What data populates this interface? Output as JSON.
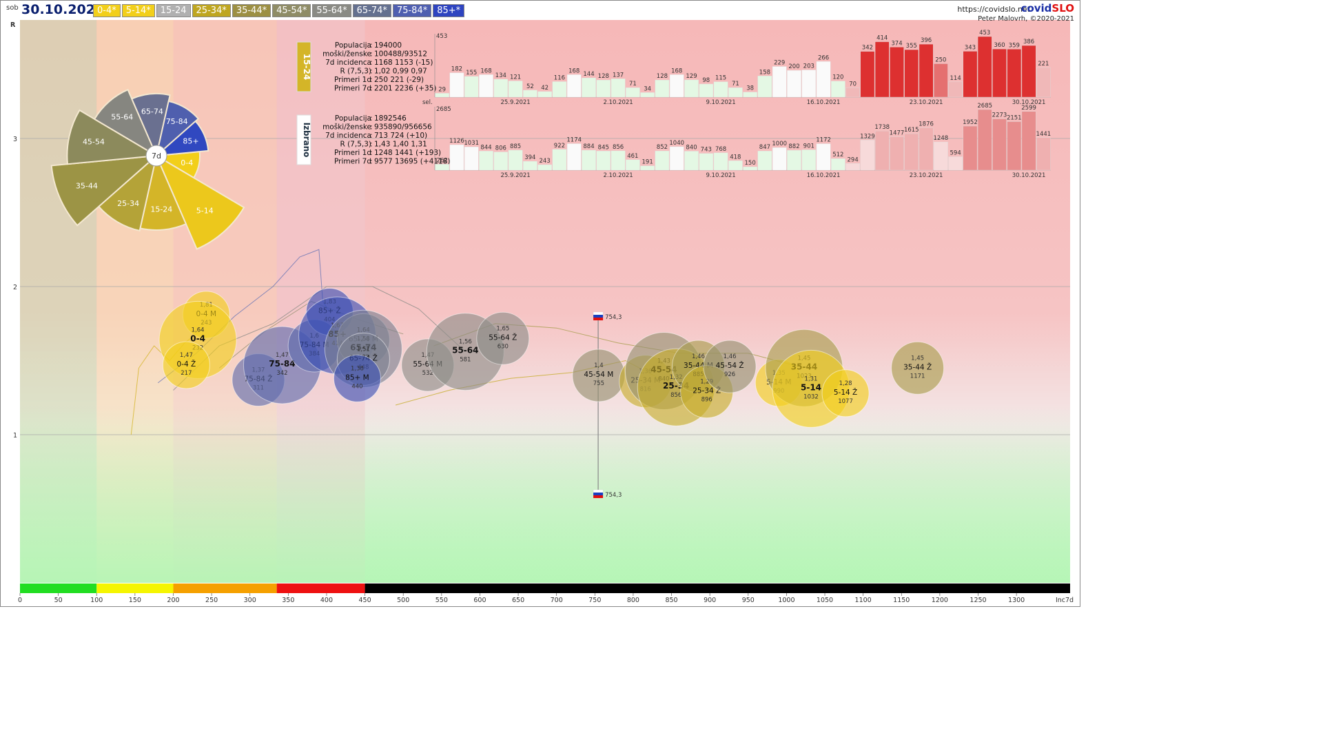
{
  "header": {
    "dayname": "sob",
    "date": "30.10.2021",
    "legend": [
      {
        "label": "0-4*",
        "bg": "#f2cf1a",
        "fg": "#ffffff"
      },
      {
        "label": "5-14*",
        "bg": "#f2cf1a",
        "fg": "#ffffff"
      },
      {
        "label": "15-24",
        "bg": "#b0b0b0",
        "fg": "#ffffff"
      },
      {
        "label": "25-34*",
        "bg": "#bfa620",
        "fg": "#ffffff"
      },
      {
        "label": "35-44*",
        "bg": "#9c8f43",
        "fg": "#ffffff"
      },
      {
        "label": "45-54*",
        "bg": "#8f8c66",
        "fg": "#ffffff"
      },
      {
        "label": "55-64*",
        "bg": "#8a8a84",
        "fg": "#ffffff"
      },
      {
        "label": "65-74*",
        "bg": "#64708f",
        "fg": "#ffffff"
      },
      {
        "label": "75-84*",
        "bg": "#4f5fb0",
        "fg": "#ffffff"
      },
      {
        "label": "85+*",
        "bg": "#2e44c0",
        "fg": "#ffffff"
      }
    ],
    "site": "https://covidslo.net",
    "brand_a": "covid",
    "brand_b": "SLO",
    "author": "Peter Malovrh, ©2020-2021"
  },
  "chart_data": [
    {
      "type": "scatter",
      "title": "",
      "xlabel": "Inc7d",
      "ylabel": "R",
      "xlim": [
        0,
        1370
      ],
      "ylim": [
        0,
        3.8
      ],
      "x_ticks": [
        0,
        50,
        100,
        150,
        200,
        250,
        300,
        350,
        400,
        450,
        500,
        550,
        600,
        650,
        700,
        750,
        800,
        850,
        900,
        950,
        1000,
        1050,
        1100,
        1150,
        1200,
        1250,
        1300
      ],
      "y_ticks": [
        1,
        2,
        3
      ],
      "zones": [
        {
          "from": 0,
          "to": 100,
          "color": "#22dd22"
        },
        {
          "from": 100,
          "to": 200,
          "color": "#f5f500"
        },
        {
          "from": 200,
          "to": 335,
          "color": "#f5a000"
        },
        {
          "from": 335,
          "to": 450,
          "color": "#ee1111"
        },
        {
          "from": 450,
          "to": 1370,
          "color": "#000000"
        }
      ],
      "points": [
        {
          "name": "0-4 M",
          "r": 1.81,
          "inc": 243,
          "x": 243,
          "y": 1.81,
          "color": "#f2cf1a",
          "bold": false
        },
        {
          "name": "0-4",
          "r": 1.64,
          "inc": 232,
          "x": 232,
          "y": 1.64,
          "color": "#f2cf1a",
          "bold": true
        },
        {
          "name": "0-4 Ž",
          "r": 1.47,
          "inc": 217,
          "x": 217,
          "y": 1.47,
          "color": "#f2cf1a",
          "bold": false
        },
        {
          "name": "75-84 Ž",
          "r": 1.37,
          "inc": 311,
          "x": 311,
          "y": 1.37,
          "color": "#5d6aad",
          "bold": false
        },
        {
          "name": "75-84",
          "r": 1.47,
          "inc": 342,
          "x": 342,
          "y": 1.47,
          "color": "#5d6aad",
          "bold": true
        },
        {
          "name": "75-84 M",
          "r": 1.6,
          "inc": 384,
          "x": 384,
          "y": 1.6,
          "color": "#5d6aad",
          "bold": false
        },
        {
          "name": "85+ Ž",
          "r": 1.83,
          "inc": 404,
          "x": 404,
          "y": 1.83,
          "color": "#3a4fb5",
          "bold": false
        },
        {
          "name": "85+",
          "r": 1.67,
          "inc": 414,
          "x": 414,
          "y": 1.67,
          "color": "#3a4fb5",
          "bold": true
        },
        {
          "name": "65-74 M",
          "r": 1.64,
          "inc": 448,
          "x": 448,
          "y": 1.64,
          "color": "#7a8090",
          "bold": false
        },
        {
          "name": "65-74",
          "r": 1.58,
          "inc": 448,
          "x": 448,
          "y": 1.58,
          "color": "#7a8090",
          "bold": true
        },
        {
          "name": "65-74 Ž",
          "r": 1.51,
          "inc": 448,
          "x": 448,
          "y": 1.51,
          "color": "#7a8090",
          "bold": false
        },
        {
          "name": "85+ M",
          "r": 1.38,
          "inc": 440,
          "x": 440,
          "y": 1.38,
          "color": "#3a4fb5",
          "bold": false
        },
        {
          "name": "55-64 M",
          "r": 1.47,
          "inc": 532,
          "x": 532,
          "y": 1.47,
          "color": "#8d8d88",
          "bold": false
        },
        {
          "name": "55-64",
          "r": 1.56,
          "inc": 581,
          "x": 581,
          "y": 1.56,
          "color": "#8d8d88",
          "bold": true
        },
        {
          "name": "55-64 Ž",
          "r": 1.65,
          "inc": 630,
          "x": 630,
          "y": 1.65,
          "color": "#8d8d88",
          "bold": false
        },
        {
          "name": "45-54 M",
          "r": 1.4,
          "inc": 755,
          "x": 755,
          "y": 1.4,
          "color": "#959070",
          "bold": false
        },
        {
          "name": "25-34 M",
          "r": 1.36,
          "inc": 816,
          "x": 816,
          "y": 1.36,
          "color": "#c6ad2a",
          "bold": false
        },
        {
          "name": "45-54",
          "r": 1.43,
          "inc": 840,
          "x": 840,
          "y": 1.43,
          "color": "#959070",
          "bold": true
        },
        {
          "name": "25-34",
          "r": 1.32,
          "inc": 856,
          "x": 856,
          "y": 1.32,
          "color": "#c6ad2a",
          "bold": true
        },
        {
          "name": "35-44 M",
          "r": 1.46,
          "inc": 885,
          "x": 885,
          "y": 1.46,
          "color": "#a89d4c",
          "bold": false
        },
        {
          "name": "25-34 Ž",
          "r": 1.29,
          "inc": 896,
          "x": 896,
          "y": 1.29,
          "color": "#c6ad2a",
          "bold": false
        },
        {
          "name": "45-54 Ž",
          "r": 1.46,
          "inc": 926,
          "x": 926,
          "y": 1.46,
          "color": "#959070",
          "bold": false
        },
        {
          "name": "5-14 M",
          "r": 1.35,
          "inc": 990,
          "x": 990,
          "y": 1.35,
          "color": "#f2cf1a",
          "bold": false
        },
        {
          "name": "35-44",
          "r": 1.45,
          "inc": 1023,
          "x": 1023,
          "y": 1.45,
          "color": "#a89d4c",
          "bold": true
        },
        {
          "name": "5-14",
          "r": 1.31,
          "inc": 1032,
          "x": 1032,
          "y": 1.31,
          "color": "#f2cf1a",
          "bold": true
        },
        {
          "name": "5-14 Ž",
          "r": 1.28,
          "inc": 1077,
          "x": 1077,
          "y": 1.28,
          "color": "#f2cf1a",
          "bold": false
        },
        {
          "name": "35-44 Ž",
          "r": 1.45,
          "inc": 1171,
          "x": 1171,
          "y": 1.45,
          "color": "#a89d4c",
          "bold": false
        }
      ],
      "flag_value_top": "754,3",
      "flag_value_bottom": "754,3",
      "flag_x": 754.3,
      "flag_y_top": 1.8,
      "flag_y_bottom": 0.6
    },
    {
      "type": "pie",
      "title": "",
      "center_label": "7d",
      "slices": [
        {
          "label": "0-4",
          "value": 0.35,
          "color": "#f2cf1a"
        },
        {
          "label": "5-14",
          "value": 0.82,
          "color": "#ecc81c"
        },
        {
          "label": "15-24",
          "value": 0.6,
          "color": "#d4b528"
        },
        {
          "label": "25-34",
          "value": 0.62,
          "color": "#b4a338"
        },
        {
          "label": "35-44",
          "value": 0.85,
          "color": "#9c9445"
        },
        {
          "label": "45-54",
          "value": 0.72,
          "color": "#8c8a5c"
        },
        {
          "label": "55-64",
          "value": 0.58,
          "color": "#868680"
        },
        {
          "label": "65-74",
          "value": 0.5,
          "color": "#6a7090"
        },
        {
          "label": "75-84",
          "value": 0.45,
          "color": "#4f5fae"
        },
        {
          "label": "85+",
          "value": 0.42,
          "color": "#3048c0"
        }
      ]
    },
    {
      "type": "bar",
      "title": "15-24",
      "color": "#d4b528",
      "max": 453,
      "stats": [
        {
          "k": "Populacija",
          "v": "194000"
        },
        {
          "k": "moški/ženske",
          "v": "100488/93512"
        },
        {
          "k": "7d incidenca",
          "v": "1168 1153 (-15)"
        },
        {
          "k": "R (7,5,3)",
          "v": "1,02 0,99 0,97"
        },
        {
          "k": "Primeri 1d",
          "v": "250 221 (-29)"
        },
        {
          "k": "Primeri 7d",
          "v": "2201 2236 (+35)"
        }
      ],
      "values": [
        29,
        182,
        155,
        168,
        134,
        121,
        52,
        42,
        116,
        168,
        144,
        128,
        137,
        71,
        34,
        128,
        168,
        129,
        98,
        115,
        71,
        38,
        158,
        229,
        200,
        203,
        266,
        120,
        70,
        342,
        414,
        374,
        355,
        396,
        250,
        114,
        343,
        453,
        360,
        359,
        386,
        221
      ],
      "date_labels": [
        {
          "i": 5,
          "t": "25.9.2021"
        },
        {
          "i": 12,
          "t": "2.10.2021"
        },
        {
          "i": 19,
          "t": "9.10.2021"
        },
        {
          "i": 26,
          "t": "16.10.2021"
        },
        {
          "i": 33,
          "t": "23.10.2021"
        },
        {
          "i": 40,
          "t": "30.10.2021"
        }
      ]
    },
    {
      "type": "bar",
      "title": "Izbrano",
      "color": "#ffffff",
      "max": 2685,
      "max_prefix": "sel.",
      "stats": [
        {
          "k": "Populacija",
          "v": "1892546"
        },
        {
          "k": "moški/ženske",
          "v": "935890/956656"
        },
        {
          "k": "7d incidenca",
          "v": "713 724 (+10)"
        },
        {
          "k": "R (7,5,3)",
          "v": "1,43 1,40 1,31"
        },
        {
          "k": "Primeri 1d",
          "v": "1248 1441 (+193)"
        },
        {
          "k": "Primeri 7d",
          "v": "9577 13695 (+4118)"
        }
      ],
      "values": [
        262,
        1126,
        1031,
        844,
        806,
        885,
        394,
        243,
        922,
        1174,
        884,
        845,
        856,
        461,
        191,
        852,
        1040,
        840,
        743,
        768,
        418,
        150,
        847,
        1000,
        882,
        901,
        1172,
        512,
        294,
        1329,
        1738,
        1477,
        1615,
        1876,
        1248,
        594,
        1952,
        2685,
        2273,
        2151,
        2599,
        1441
      ],
      "date_labels": [
        {
          "i": 5,
          "t": "25.9.2021"
        },
        {
          "i": 12,
          "t": "2.10.2021"
        },
        {
          "i": 19,
          "t": "9.10.2021"
        },
        {
          "i": 26,
          "t": "16.10.2021"
        },
        {
          "i": 33,
          "t": "23.10.2021"
        },
        {
          "i": 40,
          "t": "30.10.2021"
        }
      ]
    }
  ]
}
